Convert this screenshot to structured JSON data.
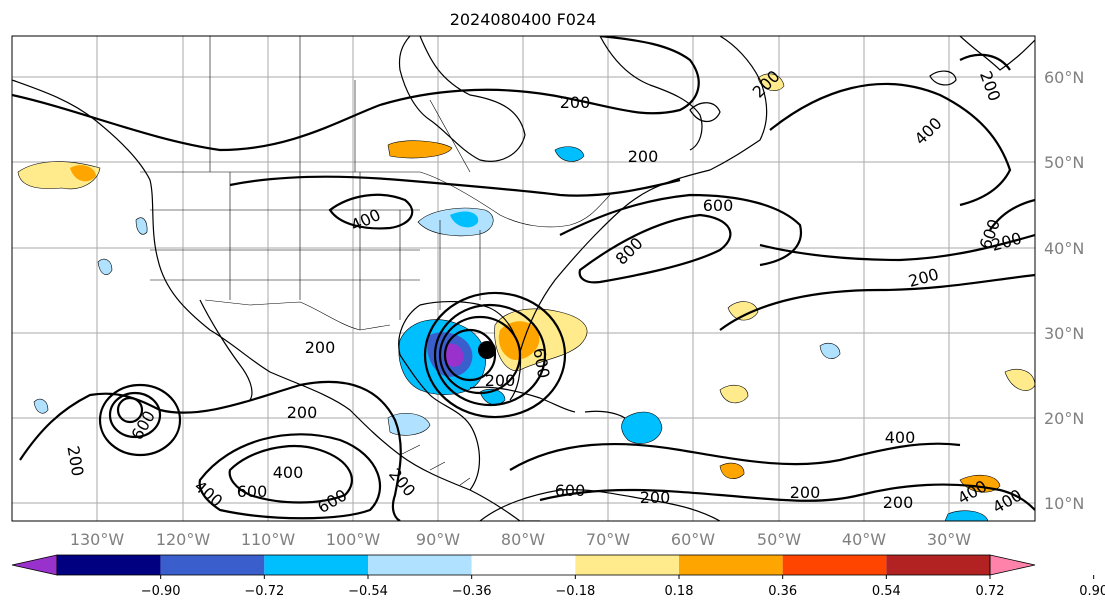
{
  "title": "2024080400 F024",
  "grid": true,
  "lon_labels": [
    "130°W",
    "120°W",
    "110°W",
    "100°W",
    "90°W",
    "80°W",
    "70°W",
    "60°W",
    "50°W",
    "40°W",
    "30°W"
  ],
  "lat_labels": [
    "60°N",
    "50°N",
    "40°N",
    "30°N",
    "20°N",
    "10°N"
  ],
  "colorbar": {
    "ticks": [
      "−0.90",
      "−0.72",
      "−0.54",
      "−0.36",
      "−0.18",
      "0.18",
      "0.36",
      "0.54",
      "0.72",
      "0.90"
    ],
    "colors": [
      "#9932cc",
      "#000080",
      "#3a5fcd",
      "#00bfff",
      "#b0e2ff",
      "#ffffff",
      "#ffeb8c",
      "#ffa500",
      "#ff4500",
      "#b22222",
      "#ff82ab"
    ],
    "extend": "both"
  },
  "contour_labels": [
    "200",
    "200",
    "200",
    "200",
    "200",
    "200",
    "200",
    "200",
    "200",
    "200",
    "200",
    "200",
    "400",
    "400",
    "400",
    "400",
    "400",
    "400",
    "400",
    "600",
    "600",
    "600",
    "600",
    "600",
    "600",
    "800",
    "600",
    "200",
    "200"
  ],
  "storm_marker": "filled circle",
  "icons": [
    "hurricane-center-marker"
  ]
}
